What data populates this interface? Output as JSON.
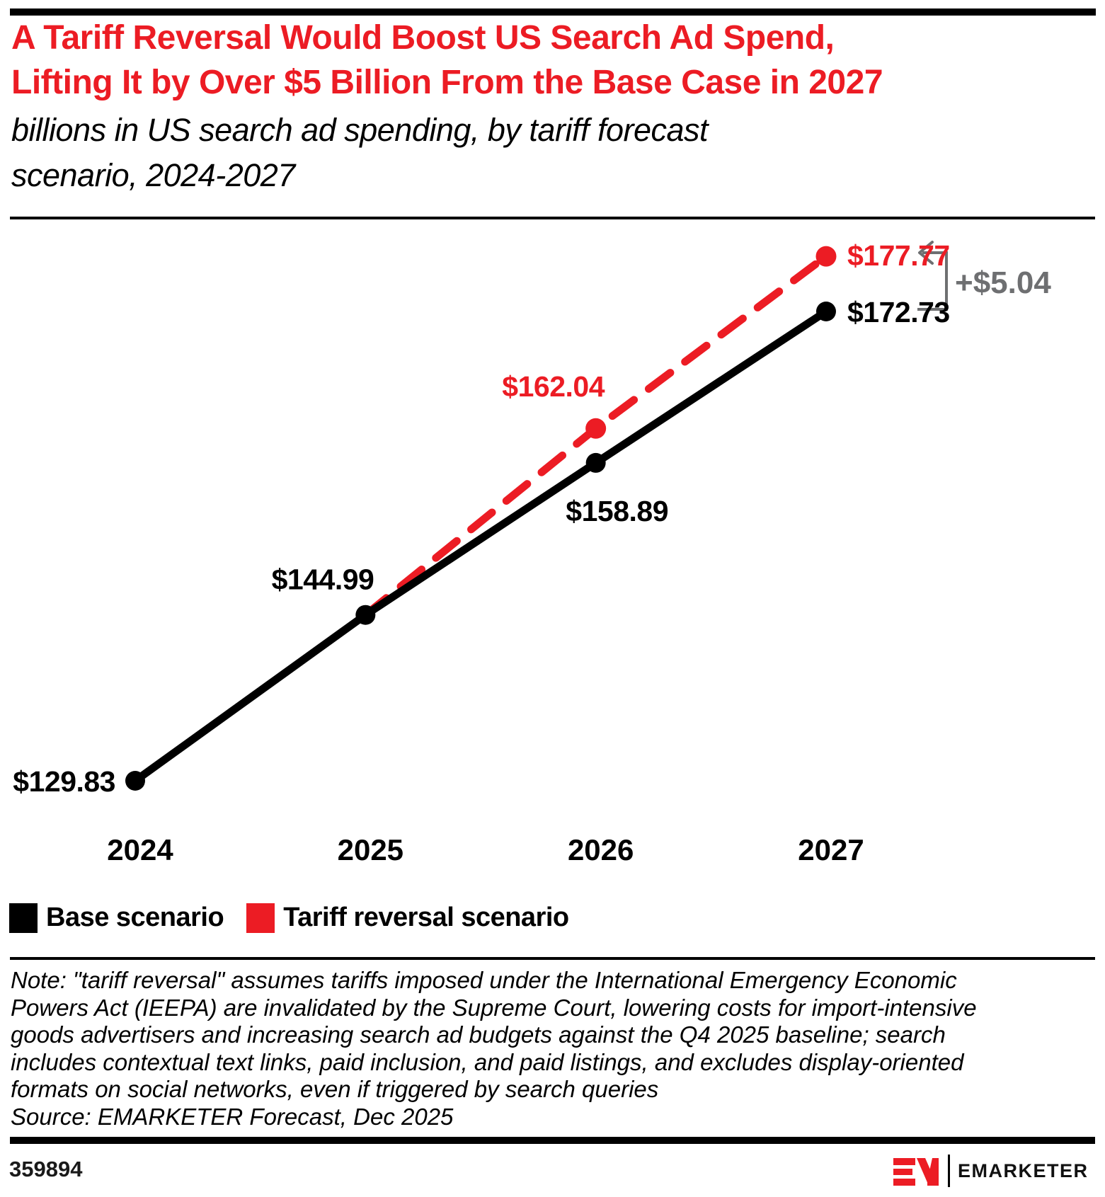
{
  "header": {
    "title": "A Tariff Reversal Would Boost US Search Ad Spend,\nLifting It by Over $5 Billion From the Base Case in 2027",
    "subtitle": "billions in US search ad spending, by tariff forecast\nscenario, 2024-2027"
  },
  "chart_data": {
    "type": "line",
    "title": "billions in US search ad spending, by tariff forecast scenario, 2024-2027",
    "categories": [
      "2024",
      "2025",
      "2026",
      "2027"
    ],
    "series": [
      {
        "name": "Base scenario",
        "color": "#000000",
        "style": "solid",
        "values": [
          129.83,
          144.99,
          158.89,
          172.73
        ],
        "labels": [
          "$129.83",
          "$144.99",
          "$158.89",
          "$172.73"
        ]
      },
      {
        "name": "Tariff reversal scenario",
        "color": "#EC1C24",
        "style": "dashed",
        "values": [
          null,
          144.99,
          162.04,
          177.77
        ],
        "labels": [
          null,
          null,
          "$162.04",
          "$177.77"
        ]
      }
    ],
    "annotation": {
      "text": "+$5.04",
      "color": "#6E6F71",
      "meaning": "difference between scenarios in 2027"
    },
    "xlabel": "",
    "ylabel": "",
    "ylim": [
      125,
      185
    ],
    "grid": false,
    "legend_position": "bottom-left"
  },
  "legend": {
    "items": [
      {
        "label": "Base scenario",
        "color": "#000000"
      },
      {
        "label": "Tariff reversal scenario",
        "color": "#EC1C24"
      }
    ]
  },
  "note": "Note: \"tariff reversal\" assumes tariffs imposed under the International Emergency Economic\nPowers Act (IEEPA) are invalidated by the Supreme Court, lowering costs for import-intensive\ngoods advertisers and increasing search ad budgets against the Q4 2025 baseline; search\nincludes contextual text links, paid inclusion, and paid listings, and excludes display-oriented\nformats on social networks, even if triggered by search queries",
  "source": "Source: EMARKETER Forecast, Dec 2025",
  "footer": {
    "id_number": "359894",
    "brand": "EMARKETER"
  },
  "colors": {
    "accent_red": "#EC1C24",
    "annotation_gray": "#6E6F71",
    "black": "#000000"
  }
}
